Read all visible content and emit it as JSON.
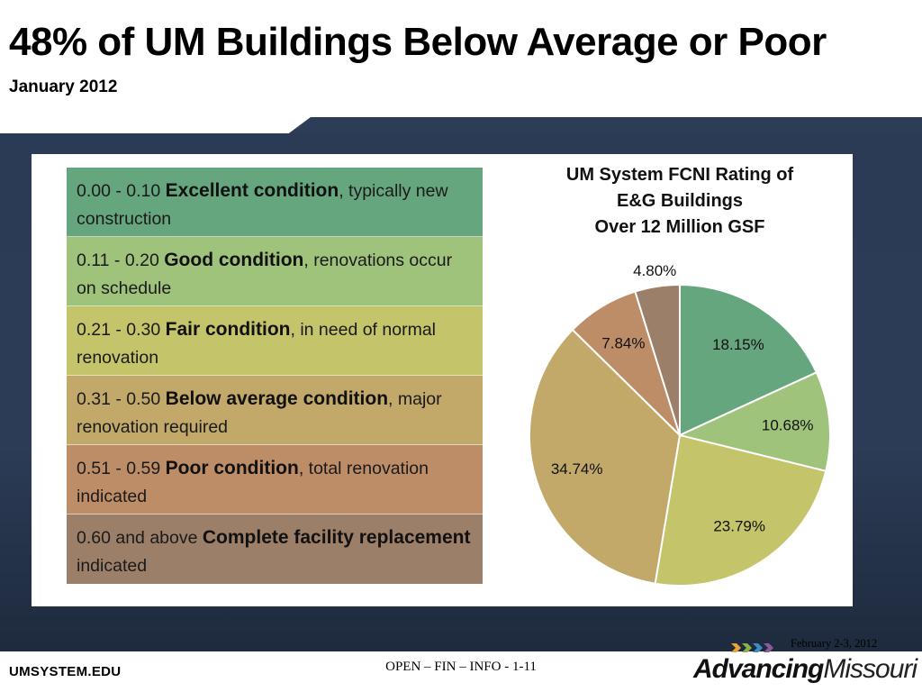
{
  "page": {
    "title": "48% of UM Buildings Below Average or Poor",
    "subtitle": "January 2012",
    "footer_left": "UMSYSTEM.EDU",
    "footer_center": "OPEN – FIN – INFO - 1-11",
    "footer_date": "February 2-3, 2012",
    "logo_bold": "Advancing",
    "logo_light": "Missouri"
  },
  "legend": [
    {
      "range": "0.00 - 0.10",
      "label": "Excellent condition",
      "desc": ", typically new construction",
      "color": "#66a67f"
    },
    {
      "range": "0.11 - 0.20",
      "label": "Good condition",
      "desc": ", renovations occur on schedule",
      "color": "#9fc37a"
    },
    {
      "range": "0.21 - 0.30",
      "label": "Fair condition",
      "desc": ", in need of normal renovation",
      "color": "#c4c46b"
    },
    {
      "range": "0.31 - 0.50",
      "label": "Below average condition",
      "desc": ", major renovation required",
      "color": "#c2a96a"
    },
    {
      "range": "0.51 - 0.59",
      "label": "Poor condition",
      "desc": ", total renovation indicated",
      "color": "#bd8d68"
    },
    {
      "range": "0.60 and above",
      "label": "Complete facility replacement",
      "desc": " indicated",
      "color": "#9c7f69"
    }
  ],
  "chart_data": {
    "type": "pie",
    "title": [
      "UM System FCNI Rating of",
      "E&G Buildings",
      "Over 12 Million GSF"
    ],
    "slices": [
      {
        "label": "18.15%",
        "value": 18.15,
        "color": "#66a67f"
      },
      {
        "label": "10.68%",
        "value": 10.68,
        "color": "#9fc37a"
      },
      {
        "label": "23.79%",
        "value": 23.79,
        "color": "#c4c46b"
      },
      {
        "label": "34.74%",
        "value": 34.74,
        "color": "#c2a96a"
      },
      {
        "label": "7.84%",
        "value": 7.84,
        "color": "#bd8d68"
      },
      {
        "label": "4.80%",
        "value": 4.8,
        "color": "#9c7f69"
      }
    ],
    "start": "12 o'clock",
    "direction": "clockwise"
  }
}
